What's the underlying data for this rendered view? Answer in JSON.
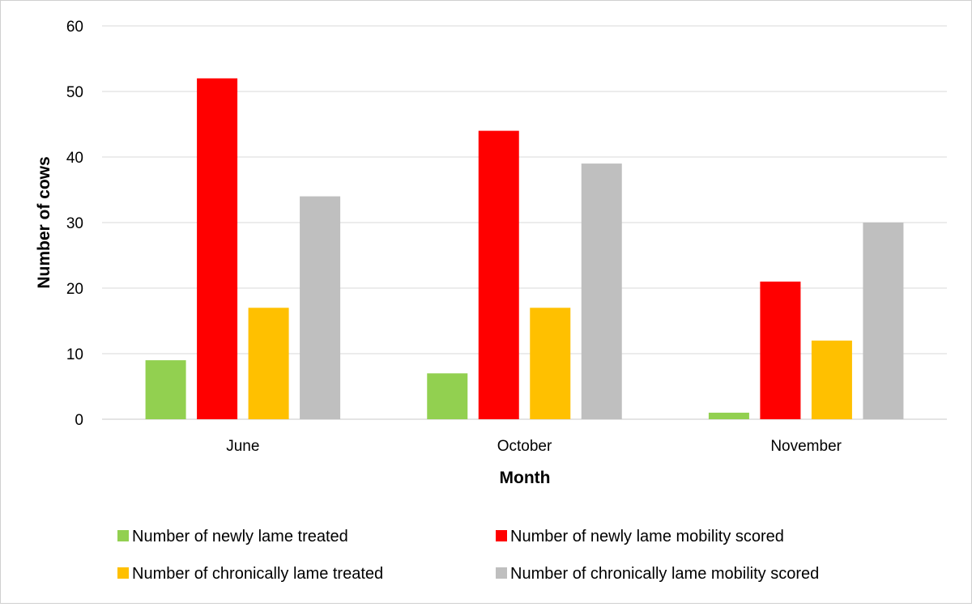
{
  "chart_data": {
    "type": "bar",
    "title": "",
    "xlabel": "Month",
    "ylabel": "Number of cows",
    "categories": [
      "June",
      "October",
      "November"
    ],
    "ylim": [
      0,
      60
    ],
    "yticks": [
      0,
      10,
      20,
      30,
      40,
      50,
      60
    ],
    "grid": true,
    "legend_position": "bottom",
    "series": [
      {
        "name": "Number of newly lame treated",
        "color": "#92d050",
        "values": [
          9,
          7,
          1
        ]
      },
      {
        "name": "Number of newly lame mobility scored",
        "color": "#ff0000",
        "values": [
          52,
          44,
          21
        ]
      },
      {
        "name": "Number of chronically lame treated",
        "color": "#ffc000",
        "values": [
          17,
          17,
          12
        ]
      },
      {
        "name": "Number of chronically lame mobility scored",
        "color": "#bfbfbf",
        "values": [
          34,
          39,
          30
        ]
      }
    ]
  }
}
